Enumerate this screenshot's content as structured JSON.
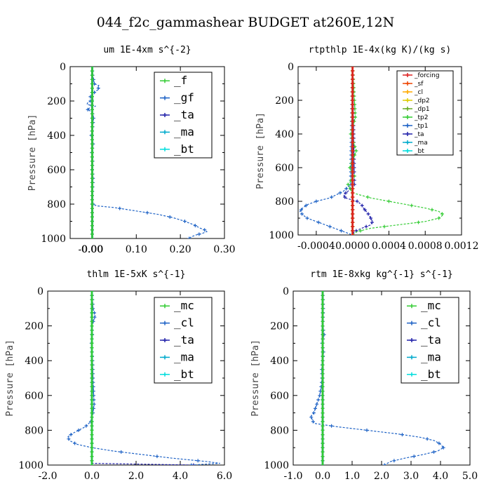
{
  "figure_title": "044_f2c_gammashear  BUDGET at260E,12N",
  "chart_data": [
    {
      "type": "line",
      "title": "um  1E-4xm s^{-2}",
      "ylabel": "Pressure [hPa]",
      "xlim": [
        -0.05,
        0.3
      ],
      "ylim": [
        1000,
        0
      ],
      "xticks": [
        "-0.00",
        "0.00",
        "0.10",
        "0.20",
        "0.30"
      ],
      "xtick_values": [
        0.0,
        0.0,
        0.1,
        0.2,
        0.3
      ],
      "yticks": [
        0,
        200,
        400,
        600,
        800,
        1000
      ],
      "legend": "top-right",
      "series": [
        {
          "name": "_f",
          "color": "#33cc33",
          "y": [
            0,
            1000
          ],
          "x": [
            0,
            0
          ]
        },
        {
          "name": "_gf",
          "color": "#1f63c6",
          "y": [
            0,
            50,
            100,
            110,
            120,
            130,
            140,
            150,
            160,
            170,
            180,
            190,
            200,
            210,
            220,
            230,
            240,
            250,
            260,
            280,
            300,
            350,
            400,
            450,
            500,
            550,
            600,
            650,
            700,
            750,
            780,
            800,
            810,
            820,
            840,
            860,
            880,
            900,
            920,
            940,
            950,
            960,
            970,
            980,
            990,
            1000
          ],
          "x": [
            0,
            0.001,
            0.005,
            0.015,
            0.012,
            0.016,
            0.01,
            0.005,
            0.002,
            -0.005,
            -0.003,
            0.002,
            -0.004,
            -0.01,
            -0.012,
            0.008,
            -0.006,
            -0.01,
            -0.003,
            0.002,
            0.003,
            0.001,
            -0.002,
            0.002,
            -0.001,
            0.001,
            0.0,
            0.002,
            0.001,
            0.0,
            0.0,
            0.002,
            0.01,
            0.05,
            0.1,
            0.15,
            0.185,
            0.21,
            0.23,
            0.245,
            0.255,
            0.26,
            0.25,
            0.235,
            0.225,
            0.22
          ]
        },
        {
          "name": "_ta",
          "color": "#2222aa",
          "y": [
            0,
            1000
          ],
          "x": [
            0,
            0
          ]
        },
        {
          "name": "_ma",
          "color": "#00aacc",
          "y": [
            0,
            1000
          ],
          "x": [
            0,
            0
          ]
        },
        {
          "name": "_bt",
          "color": "#00dddd",
          "y": [
            0,
            1000
          ],
          "x": [
            0,
            0
          ]
        }
      ]
    },
    {
      "type": "line",
      "title": "rtpthlp  1E-4x(kg K)/(kg s)",
      "ylabel": "Pressure [hPa]",
      "xlim": [
        -0.0006,
        0.0012
      ],
      "ylim": [
        1000,
        0
      ],
      "xticks": [
        "-0.0004",
        "0.0000",
        "0.0004",
        "0.0008",
        "0.0012"
      ],
      "xtick_values": [
        -0.0004,
        0.0,
        0.0004,
        0.0008,
        0.0012
      ],
      "yticks": [
        0,
        200,
        400,
        600,
        800,
        1000
      ],
      "legend": "top-right",
      "series": [
        {
          "name": "_forcing",
          "color": "#dd2222",
          "y": [
            0,
            1000
          ],
          "x": [
            0,
            0
          ]
        },
        {
          "name": "_sf",
          "color": "#ee4400",
          "y": [
            0,
            1000
          ],
          "x": [
            0,
            0
          ]
        },
        {
          "name": "_cl",
          "color": "#ffaa00",
          "y": [
            0,
            1000
          ],
          "x": [
            0,
            0
          ]
        },
        {
          "name": "_dp2",
          "color": "#ddcc00",
          "y": [
            0,
            1000
          ],
          "x": [
            0,
            0
          ]
        },
        {
          "name": "_dp1",
          "color": "#66aa22",
          "y": [
            0,
            1000
          ],
          "x": [
            0,
            0
          ]
        },
        {
          "name": "_tp2",
          "color": "#33cc33",
          "y": [
            0,
            300,
            400,
            500,
            600,
            650,
            700,
            750,
            780,
            800,
            820,
            840,
            860,
            880,
            900,
            920,
            940,
            960,
            980,
            1000
          ],
          "x": [
            0,
            3e-05,
            -2e-05,
            4e-05,
            -3e-05,
            2e-05,
            -5e-05,
            0.0,
            0.0002,
            0.0004,
            0.0006,
            0.0008,
            0.00095,
            0.001,
            0.00095,
            0.0008,
            0.0005,
            0.0002,
            5e-05,
            0.0
          ]
        },
        {
          "name": "_tp1",
          "color": "#1f63c6",
          "y": [
            0,
            700,
            740,
            780,
            800,
            820,
            840,
            860,
            880,
            900,
            920,
            940,
            960,
            980,
            1000
          ],
          "x": [
            0,
            -2e-05,
            -0.0001,
            -0.00025,
            -0.0004,
            -0.0005,
            -0.00055,
            -0.00058,
            -0.00055,
            -0.0005,
            -0.0004,
            -0.0003,
            -0.0002,
            -0.0001,
            0.0
          ]
        },
        {
          "name": "_ta",
          "color": "#2222aa",
          "y": [
            0,
            700,
            740,
            760,
            780,
            800,
            820,
            840,
            860,
            880,
            900,
            920,
            940,
            960,
            980,
            1000
          ],
          "x": [
            0,
            2e-05,
            -5e-05,
            -0.0001,
            -8e-05,
            5e-05,
            0.0001,
            0.00012,
            0.00015,
            0.00018,
            0.0002,
            0.00022,
            0.0002,
            0.0001,
            2e-05,
            0.0
          ]
        },
        {
          "name": "_ma",
          "color": "#00aacc",
          "y": [
            0,
            1000
          ],
          "x": [
            0,
            0
          ]
        },
        {
          "name": "_bt",
          "color": "#00dddd",
          "y": [
            0,
            1000
          ],
          "x": [
            0,
            0
          ]
        }
      ]
    },
    {
      "type": "line",
      "title": "thlm  1E-5xK s^{-1}",
      "ylabel": "Pressure [hPa]",
      "xlim": [
        -2.0,
        6.0
      ],
      "ylim": [
        1000,
        0
      ],
      "xticks": [
        "-2.0",
        "0.0",
        "2.0",
        "4.0",
        "6.0"
      ],
      "xtick_values": [
        -2.0,
        0.0,
        2.0,
        4.0,
        6.0
      ],
      "yticks": [
        0,
        200,
        400,
        600,
        800,
        1000
      ],
      "legend": "top-right",
      "series": [
        {
          "name": "_mc",
          "color": "#33cc33",
          "y": [
            0,
            1000
          ],
          "x": [
            0,
            0
          ]
        },
        {
          "name": "_cl",
          "color": "#1f63c6",
          "y": [
            0,
            100,
            120,
            140,
            160,
            180,
            200,
            250,
            300,
            400,
            500,
            600,
            650,
            700,
            750,
            780,
            800,
            820,
            840,
            860,
            880,
            900,
            920,
            940,
            960,
            980,
            990,
            1000
          ],
          "x": [
            0,
            0.05,
            0.1,
            0.15,
            0.1,
            0.05,
            0.0,
            0.02,
            -0.02,
            0.03,
            0.05,
            0.08,
            0.1,
            0.05,
            -0.05,
            -0.3,
            -0.6,
            -0.9,
            -1.1,
            -1.0,
            -0.7,
            0.0,
            1.0,
            2.3,
            3.6,
            5.2,
            5.8,
            4.5
          ]
        },
        {
          "name": "_ta",
          "color": "#2222aa",
          "y": [
            0,
            990,
            1000
          ],
          "x": [
            0,
            0.0,
            4.6
          ]
        },
        {
          "name": "_ma",
          "color": "#00aacc",
          "y": [
            0,
            1000
          ],
          "x": [
            0,
            0
          ]
        },
        {
          "name": "_bt",
          "color": "#00dddd",
          "y": [
            0,
            1000
          ],
          "x": [
            0,
            0
          ]
        }
      ]
    },
    {
      "type": "line",
      "title": "rtm  1E-8xkg kg^{-1} s^{-1}",
      "ylabel": "Pressure [hPa]",
      "xlim": [
        -1.0,
        5.0
      ],
      "ylim": [
        1000,
        0
      ],
      "xticks": [
        "-1.0",
        "0.0",
        "1.0",
        "2.0",
        "3.0",
        "4.0",
        "5.0"
      ],
      "xtick_values": [
        -1.0,
        0.0,
        1.0,
        2.0,
        3.0,
        4.0,
        5.0
      ],
      "yticks": [
        0,
        200,
        400,
        600,
        800,
        1000
      ],
      "legend": "top-right",
      "series": [
        {
          "name": "_mc",
          "color": "#33cc33",
          "y": [
            0,
            1000
          ],
          "x": [
            0,
            0
          ]
        },
        {
          "name": "_cl",
          "color": "#1f63c6",
          "y": [
            0,
            100,
            200,
            250,
            300,
            350,
            400,
            450,
            500,
            550,
            600,
            650,
            700,
            720,
            740,
            760,
            780,
            800,
            820,
            840,
            860,
            880,
            900,
            920,
            940,
            960,
            980,
            1000
          ],
          "x": [
            0,
            0.02,
            0.0,
            0.05,
            -0.02,
            0.03,
            0.0,
            -0.03,
            -0.02,
            -0.05,
            -0.1,
            -0.2,
            -0.3,
            -0.4,
            -0.35,
            -0.3,
            0.5,
            1.5,
            2.5,
            3.3,
            3.8,
            4.0,
            4.1,
            3.9,
            3.4,
            2.8,
            2.3,
            2.1
          ]
        },
        {
          "name": "_ta",
          "color": "#2222aa",
          "y": [
            0,
            1000
          ],
          "x": [
            0,
            0
          ]
        },
        {
          "name": "_ma",
          "color": "#00aacc",
          "y": [
            0,
            1000
          ],
          "x": [
            0,
            0
          ]
        },
        {
          "name": "_bt",
          "color": "#00dddd",
          "y": [
            0,
            1000
          ],
          "x": [
            0,
            0
          ]
        }
      ]
    }
  ]
}
